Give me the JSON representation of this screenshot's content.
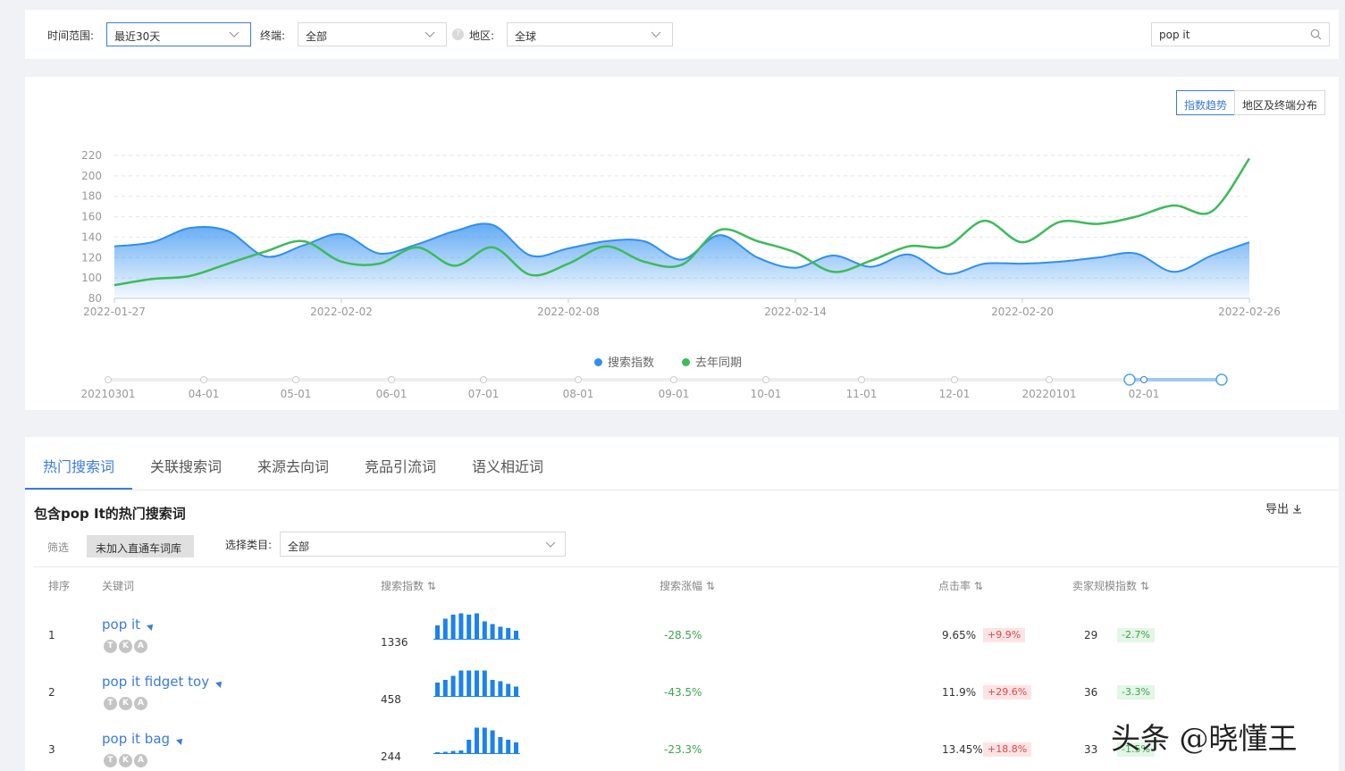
{
  "filters": {
    "time_range_label": "时间范围:",
    "time_range_value": "最近30天",
    "terminal_label": "终端:",
    "terminal_value": "全部",
    "region_label": "地区:",
    "region_value": "全球",
    "search_value": "pop it"
  },
  "chart_toggle": {
    "trend": "指数趋势",
    "distribution": "地区及终端分布"
  },
  "chart_data": {
    "type": "area",
    "ylim": [
      80,
      220
    ],
    "yticks": [
      80,
      100,
      120,
      140,
      160,
      180,
      200,
      220
    ],
    "x_tick_labels": [
      "2022-01-27",
      "2022-02-02",
      "2022-02-08",
      "2022-02-14",
      "2022-02-20",
      "2022-02-26"
    ],
    "x": [
      "2022-01-27",
      "2022-01-28",
      "2022-01-29",
      "2022-01-30",
      "2022-01-31",
      "2022-02-01",
      "2022-02-02",
      "2022-02-03",
      "2022-02-04",
      "2022-02-05",
      "2022-02-06",
      "2022-02-07",
      "2022-02-08",
      "2022-02-09",
      "2022-02-10",
      "2022-02-11",
      "2022-02-12",
      "2022-02-13",
      "2022-02-14",
      "2022-02-15",
      "2022-02-16",
      "2022-02-17",
      "2022-02-18",
      "2022-02-19",
      "2022-02-20",
      "2022-02-21",
      "2022-02-22",
      "2022-02-23",
      "2022-02-24",
      "2022-02-25",
      "2022-02-26"
    ],
    "series": [
      {
        "name": "搜索指数",
        "color": "#2f8ff0",
        "values": [
          131,
          135,
          149,
          146,
          121,
          132,
          143,
          124,
          133,
          146,
          152,
          122,
          129,
          136,
          136,
          118,
          142,
          120,
          110,
          122,
          111,
          123,
          104,
          114,
          114,
          116,
          120,
          124,
          106,
          122,
          135
        ]
      },
      {
        "name": "去年同期",
        "color": "#3dbb5a",
        "values": [
          93,
          99,
          102,
          114,
          126,
          136,
          116,
          114,
          130,
          112,
          130,
          103,
          114,
          131,
          116,
          113,
          147,
          136,
          125,
          106,
          117,
          131,
          131,
          156,
          135,
          155,
          153,
          160,
          171,
          165,
          217
        ]
      }
    ],
    "legend_position": "bottom",
    "grid": true
  },
  "timeline": {
    "labels": [
      "20210301",
      "04-01",
      "05-01",
      "06-01",
      "07-01",
      "08-01",
      "09-01",
      "10-01",
      "11-01",
      "12-01",
      "20220101",
      "02-01"
    ]
  },
  "tabs": [
    "热门搜索词",
    "关联搜索词",
    "来源去向词",
    "竞品引流词",
    "语义相近词"
  ],
  "section": {
    "title": "包含pop It的热门搜索词",
    "export": "导出",
    "filter_label": "筛选",
    "filter_button": "未加入直通车词库",
    "category_label": "选择类目:",
    "category_value": "全部"
  },
  "table": {
    "headers": [
      "排序",
      "关键词",
      "搜索指数",
      "搜索涨幅",
      "点击率",
      "卖家规模指数"
    ],
    "badges": [
      "T",
      "K",
      "A"
    ],
    "rows": [
      {
        "rank": "1",
        "keyword": "pop it",
        "search_index": "1336",
        "growth": "-28.5%",
        "ctr": "9.65%",
        "ctr_change": "+9.9%",
        "seller_index": "29",
        "seller_change": "-2.7%",
        "spark": [
          0.5,
          0.75,
          0.9,
          0.95,
          0.9,
          0.95,
          0.65,
          0.55,
          0.45,
          0.4,
          0.3
        ]
      },
      {
        "rank": "2",
        "keyword": "pop it fidget toy",
        "search_index": "458",
        "growth": "-43.5%",
        "ctr": "11.9%",
        "ctr_change": "+29.6%",
        "seller_index": "36",
        "seller_change": "-3.3%",
        "spark": [
          0.5,
          0.6,
          0.75,
          0.95,
          0.95,
          0.95,
          0.95,
          0.6,
          0.55,
          0.45,
          0.35
        ]
      },
      {
        "rank": "3",
        "keyword": "pop it bag",
        "search_index": "244",
        "growth": "-23.3%",
        "ctr": "13.45%",
        "ctr_change": "+18.8%",
        "seller_index": "33",
        "seller_change": "-1.5%",
        "spark": [
          0.02,
          0.05,
          0.08,
          0.1,
          0.5,
          0.95,
          0.95,
          0.85,
          0.6,
          0.5,
          0.4
        ]
      }
    ]
  },
  "watermark": "头条 @晓懂王"
}
